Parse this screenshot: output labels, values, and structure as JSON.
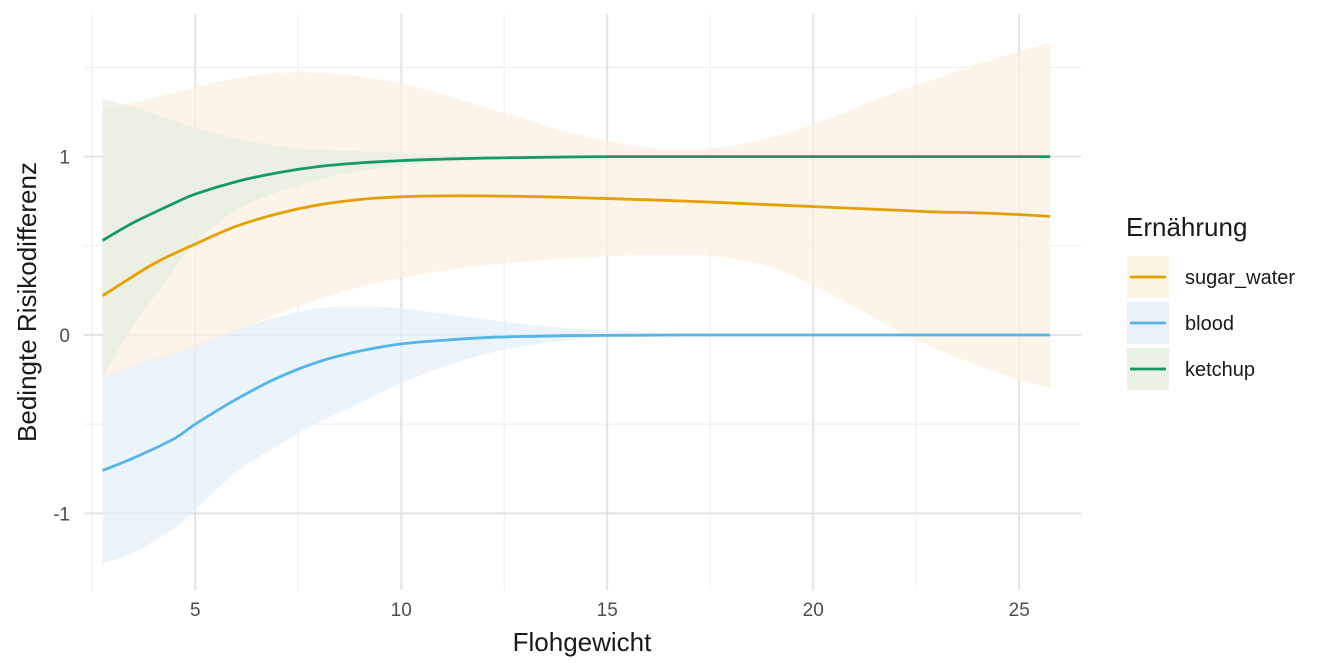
{
  "chart_data": {
    "type": "line",
    "xlabel": "Flohgewicht",
    "ylabel": "Bedingte Risikodifferenz",
    "xlim": [
      2.3,
      26.5
    ],
    "ylim": [
      -1.43,
      1.8
    ],
    "x_ticks": [
      5,
      10,
      15,
      20,
      25
    ],
    "y_ticks": [
      -1,
      0,
      1
    ],
    "y_tick_labels": [
      "-1",
      "0",
      "1"
    ],
    "grid": true,
    "legend": {
      "title": "Ernährung",
      "position": "right"
    },
    "series": [
      {
        "name": "sugar_water",
        "color": "#E69F00",
        "fill": "#FBF0DF",
        "x": [
          2.75,
          4,
          5,
          6,
          7,
          8,
          9,
          10,
          11,
          12,
          13,
          14,
          15,
          16,
          17,
          18,
          19,
          20,
          21,
          22,
          23,
          24,
          25,
          25.75
        ],
        "y": [
          0.22,
          0.4,
          0.51,
          0.61,
          0.68,
          0.73,
          0.76,
          0.775,
          0.78,
          0.78,
          0.777,
          0.772,
          0.765,
          0.758,
          0.75,
          0.74,
          0.73,
          0.72,
          0.71,
          0.7,
          0.69,
          0.685,
          0.675,
          0.665
        ],
        "lower": [
          -0.25,
          -0.15,
          -0.08,
          0.02,
          0.12,
          0.2,
          0.27,
          0.32,
          0.36,
          0.39,
          0.41,
          0.43,
          0.44,
          0.45,
          0.45,
          0.43,
          0.38,
          0.28,
          0.16,
          0.03,
          -0.08,
          -0.17,
          -0.25,
          -0.3
        ],
        "upper": [
          1.26,
          1.33,
          1.39,
          1.44,
          1.47,
          1.47,
          1.45,
          1.41,
          1.35,
          1.28,
          1.21,
          1.14,
          1.09,
          1.05,
          1.04,
          1.06,
          1.11,
          1.18,
          1.27,
          1.36,
          1.44,
          1.52,
          1.59,
          1.64
        ]
      },
      {
        "name": "blood",
        "color": "#56B4E9",
        "fill": "#E5F0FA",
        "x": [
          2.75,
          3.5,
          4.5,
          5,
          6,
          7,
          8,
          9,
          10,
          11,
          12,
          13,
          14,
          15,
          17,
          20,
          25.75
        ],
        "y": [
          -0.76,
          -0.69,
          -0.58,
          -0.5,
          -0.36,
          -0.24,
          -0.15,
          -0.09,
          -0.05,
          -0.03,
          -0.015,
          -0.008,
          -0.004,
          -0.002,
          0.0,
          0.0,
          0.0
        ],
        "lower": [
          -1.28,
          -1.22,
          -1.08,
          -0.98,
          -0.77,
          -0.62,
          -0.49,
          -0.38,
          -0.27,
          -0.18,
          -0.11,
          -0.06,
          -0.03,
          -0.015,
          -0.005,
          0.0,
          0.0
        ],
        "upper": [
          -0.24,
          -0.17,
          -0.1,
          -0.06,
          0.03,
          0.1,
          0.15,
          0.16,
          0.15,
          0.12,
          0.09,
          0.06,
          0.04,
          0.025,
          0.01,
          0.0,
          0.0
        ]
      },
      {
        "name": "ketchup",
        "color": "#159A66",
        "fill": "#E6EFE1",
        "x": [
          2.75,
          3.5,
          4.5,
          5,
          6,
          7,
          8,
          9,
          10,
          11,
          12,
          13,
          14,
          15,
          17,
          20,
          25.75
        ],
        "y": [
          0.53,
          0.63,
          0.74,
          0.79,
          0.86,
          0.91,
          0.945,
          0.965,
          0.978,
          0.986,
          0.992,
          0.995,
          0.998,
          1.0,
          1.0,
          1.0,
          1.0
        ],
        "lower": [
          -0.24,
          0.05,
          0.37,
          0.52,
          0.7,
          0.8,
          0.87,
          0.92,
          0.95,
          0.97,
          0.98,
          0.99,
          0.995,
          1.0,
          1.0,
          1.0,
          1.0
        ],
        "upper": [
          1.32,
          1.28,
          1.2,
          1.16,
          1.1,
          1.06,
          1.04,
          1.03,
          1.02,
          1.01,
          1.007,
          1.004,
          1.002,
          1.0,
          1.0,
          1.0,
          1.0
        ]
      }
    ]
  }
}
